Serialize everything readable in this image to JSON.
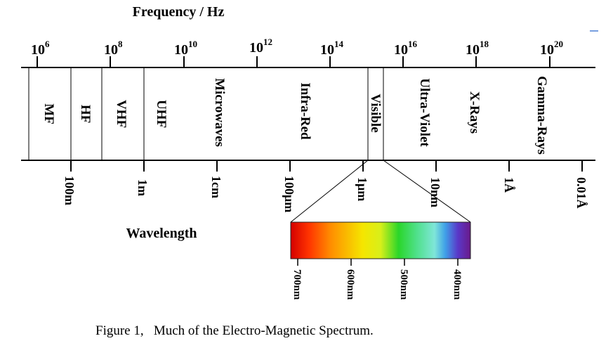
{
  "frequency_axis": {
    "title": "Frequency / Hz",
    "ticks": [
      {
        "base": "10",
        "exp": "6"
      },
      {
        "base": "10",
        "exp": "8"
      },
      {
        "base": "10",
        "exp": "10"
      },
      {
        "base": "10",
        "exp": "12"
      },
      {
        "base": "10",
        "exp": "14"
      },
      {
        "base": "10",
        "exp": "16"
      },
      {
        "base": "10",
        "exp": "18"
      },
      {
        "base": "10",
        "exp": "20"
      }
    ]
  },
  "bands": [
    "MF",
    "HF",
    "VHF",
    "UHF",
    "Microwaves",
    "Infra-Red",
    "Visible",
    "Ultra-Violet",
    "X-Rays",
    "Gamma-Rays"
  ],
  "wavelength_axis": {
    "title": "Wavelength",
    "ticks": [
      "100m",
      "1m",
      "1cm",
      "100μm",
      "1μm",
      "10nm",
      "1Å",
      "0.01Å"
    ]
  },
  "visible_spectrum": {
    "ticks": [
      "700nm",
      "600nm",
      "500nm",
      "400nm"
    ],
    "colors": [
      "#d40000",
      "#ff3300",
      "#ff8c00",
      "#f5e600",
      "#d8ef1a",
      "#2ad62a",
      "#4fe08a",
      "#7fe6d8",
      "#3fa0e8",
      "#5a38c8",
      "#6a1a8a"
    ]
  },
  "caption": "Figure 1,   Much of the Electro-Magnetic Spectrum.",
  "colors": {
    "line": "#000000",
    "accent_dash": "#4a7fd6"
  }
}
